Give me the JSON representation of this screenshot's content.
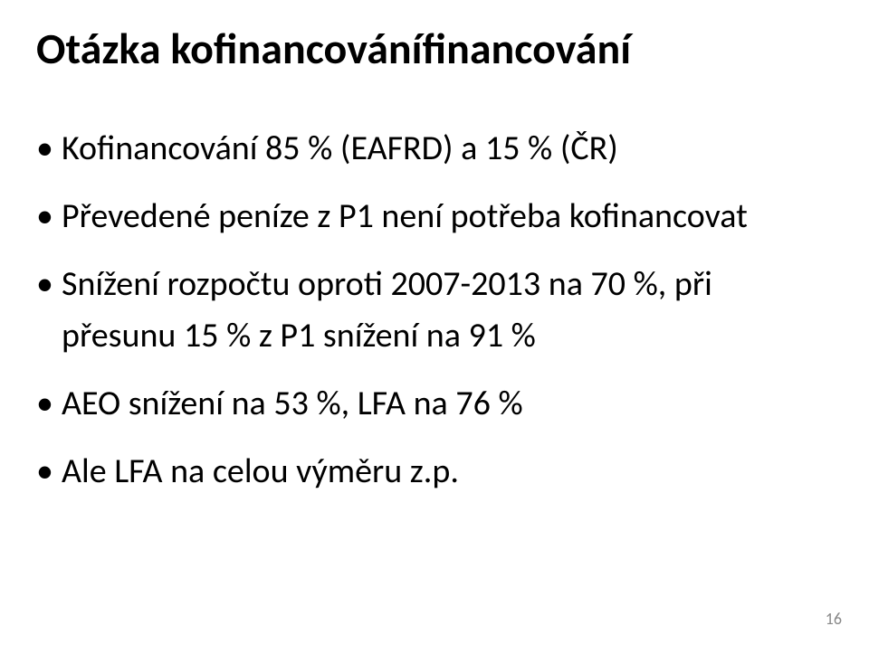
{
  "slide": {
    "title": "Otázka kofinancovánífinancování",
    "bullets": [
      "Kofinancování 85 % (EAFRD) a 15 % (ČR)",
      "Převedené peníze z P1 není potřeba kofinancovat",
      "Snížení rozpočtu oproti 2007-2013 na 70 %, při přesunu 15 % z P1 snížení na 91 %",
      "AEO snížení na 53 %, LFA na 76 %",
      "Ale LFA na celou výměru z.p."
    ],
    "page_number": "16"
  },
  "style": {
    "background_color": "#ffffff",
    "title_fontsize": 48,
    "title_fontweight": "bold",
    "bullet_fontsize": 38,
    "text_color": "#000000",
    "page_number_color": "#898989",
    "page_number_fontsize": 18
  }
}
